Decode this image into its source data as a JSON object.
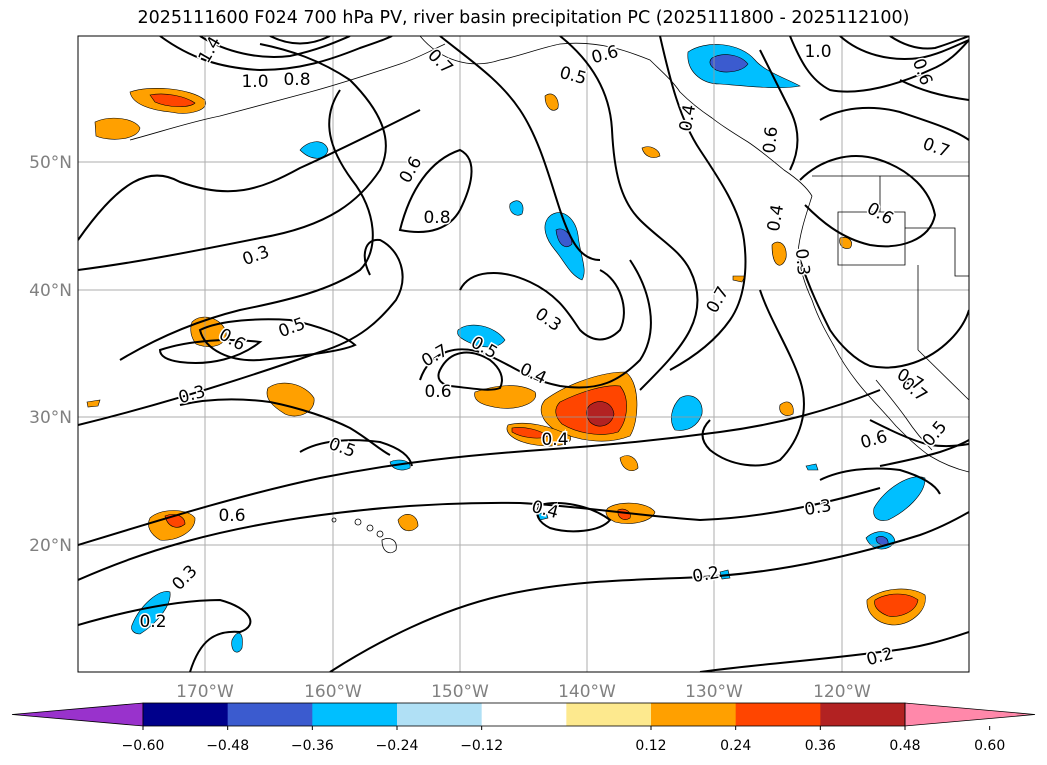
{
  "title": "2025111600 F024 700 hPa PV, river basin precipitation PC (2025111800 - 2025112100)",
  "map": {
    "projection": "cylindrical",
    "lon_labels": [
      "170°W",
      "160°W",
      "150°W",
      "140°W",
      "130°W",
      "120°W"
    ],
    "lat_labels": [
      "50°N",
      "40°N",
      "30°N",
      "20°N"
    ],
    "gridlines": true,
    "contour_labels": [
      "1.4",
      "1.0",
      "0.8",
      "0.7",
      "0.5",
      "0.6",
      "1.0",
      "0.6",
      "0.7",
      "0.6",
      "0.8",
      "0.3",
      "0.5",
      "0.6",
      "0.3",
      "0.7",
      "0.6",
      "0.3",
      "0.5",
      "0.4",
      "0.7",
      "0.6",
      "0.4",
      "0.3",
      "0.4",
      "0.4",
      "0.3",
      "0.2",
      "0.2",
      "0.3",
      "0.2",
      "0.7",
      "0.6",
      "0.6",
      "0.4",
      "0.5",
      "0.7",
      "0.6",
      "0.5"
    ]
  },
  "colorbar": {
    "ticks": [
      "−0.60",
      "−0.48",
      "−0.36",
      "−0.24",
      "−0.12",
      "0.12",
      "0.24",
      "0.36",
      "0.48",
      "0.60"
    ],
    "colors": [
      "#9932cc",
      "#00008b",
      "#3b5bcf",
      "#00bfff",
      "#b0e0f5",
      "#ffffff",
      "#fde98e",
      "#ffa000",
      "#ff4500",
      "#b22222",
      "#ff88aa"
    ],
    "extend": "both"
  }
}
